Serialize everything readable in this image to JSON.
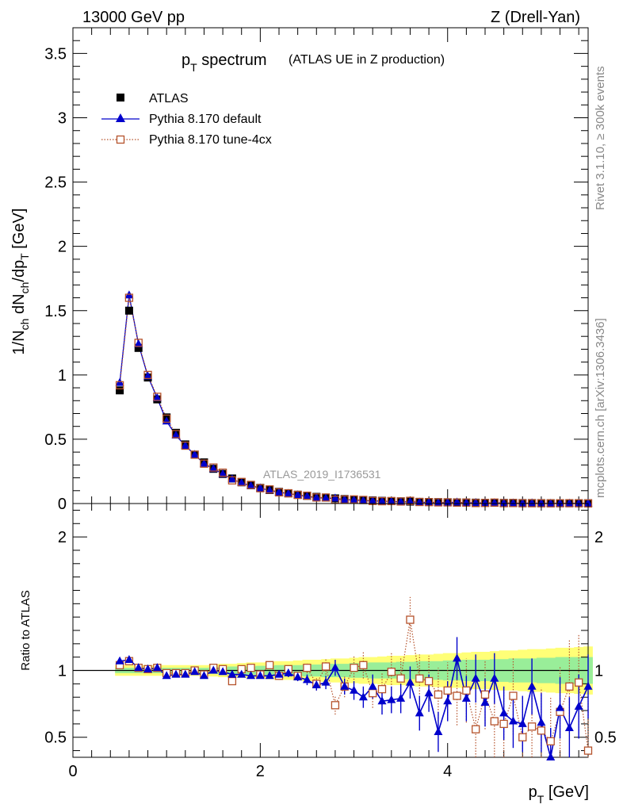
{
  "header": {
    "left_title": "13000 GeV pp",
    "right_title": "Z (Drell-Yan)"
  },
  "side_labels": {
    "rivet": "Rivet 3.1.10, ≥ 300k events",
    "mcplots": "mcplots.cern.ch [arXiv:1306.3436]"
  },
  "colors": {
    "atlas": "#000000",
    "pythia_default": "#0000cc",
    "pythia_tune": "#b5522b",
    "band_yellow": "#ffff77",
    "band_green": "#99ee99"
  },
  "chart_data": [
    {
      "type": "scatter",
      "name": "main",
      "title": "pT spectrum",
      "subtitle": "(ATLAS UE in Z production)",
      "analysis_label": "ATLAS_2019_I1736531",
      "xlabel": "pT [GeV]",
      "ylabel": "1/Nch dNch/dpT [GeV]",
      "xlim": [
        0,
        5.5
      ],
      "ylim": [
        0,
        3.7
      ],
      "yticks": [
        0,
        0.5,
        1,
        1.5,
        2,
        2.5,
        3,
        3.5
      ],
      "ytick_labels": [
        "0",
        "0.5",
        "1",
        "1.5",
        "2",
        "2.5",
        "3",
        "3.5"
      ],
      "legend": [
        "ATLAS",
        "Pythia 8.170 default",
        "Pythia 8.170 tune-4cx"
      ],
      "x": [
        0.5,
        0.6,
        0.7,
        0.8,
        0.9,
        1.0,
        1.1,
        1.2,
        1.3,
        1.4,
        1.5,
        1.6,
        1.7,
        1.8,
        1.9,
        2.0,
        2.1,
        2.2,
        2.3,
        2.4,
        2.5,
        2.6,
        2.7,
        2.8,
        2.9,
        3.0,
        3.1,
        3.2,
        3.3,
        3.4,
        3.5,
        3.6,
        3.7,
        3.8,
        3.9,
        4.0,
        4.1,
        4.2,
        4.3,
        4.4,
        4.5,
        4.6,
        4.7,
        4.8,
        4.9,
        5.0,
        5.1,
        5.2,
        5.3,
        5.4,
        5.5
      ],
      "series": [
        {
          "name": "ATLAS",
          "values": [
            0.88,
            1.5,
            1.21,
            0.98,
            0.81,
            0.67,
            0.55,
            0.46,
            0.38,
            0.32,
            0.27,
            0.23,
            0.195,
            0.165,
            0.142,
            0.122,
            0.105,
            0.091,
            0.079,
            0.069,
            0.06,
            0.052,
            0.046,
            0.04,
            0.035,
            0.031,
            0.027,
            0.024,
            0.021,
            0.019,
            0.017,
            0.015,
            0.013,
            0.012,
            0.011,
            0.01,
            0.009,
            0.008,
            0.007,
            0.006,
            0.006,
            0.005,
            0.005,
            0.004,
            0.004,
            0.0035,
            0.003,
            0.003,
            0.0028,
            0.0025,
            0.0023
          ]
        },
        {
          "name": "Pythia 8.170 default",
          "values": [
            0.94,
            1.62,
            1.24,
            0.99,
            0.82,
            0.64,
            0.53,
            0.45,
            0.38,
            0.31,
            0.27,
            0.23,
            0.19,
            0.16,
            0.137,
            0.12,
            0.102,
            0.088,
            0.077,
            0.066,
            0.056,
            0.046,
            0.042,
            0.041,
            0.031,
            0.027,
            0.022,
            0.021,
            0.018,
            0.016,
            0.013,
            0.014,
            0.009,
            0.01,
            0.006,
            0.008,
            0.01,
            0.006,
            0.006,
            0.004,
            0.005,
            0.0034,
            0.0031,
            0.0024,
            0.0035,
            0.0022,
            0.001,
            0.0022,
            0.0016,
            0.0019,
            0.002
          ]
        },
        {
          "name": "Pythia 8.170 tune-4cx",
          "values": [
            0.92,
            1.6,
            1.25,
            1.0,
            0.83,
            0.66,
            0.54,
            0.45,
            0.38,
            0.31,
            0.28,
            0.24,
            0.18,
            0.168,
            0.145,
            0.119,
            0.11,
            0.087,
            0.08,
            0.067,
            0.061,
            0.047,
            0.047,
            0.03,
            0.031,
            0.032,
            0.028,
            0.02,
            0.018,
            0.019,
            0.016,
            0.021,
            0.012,
            0.011,
            0.009,
            0.009,
            0.007,
            0.007,
            0.004,
            0.005,
            0.0075,
            0.003,
            0.004,
            0.002,
            0.0023,
            0.0018,
            0.0015,
            0.0022,
            0.0025,
            0.0023,
            0.0009
          ]
        }
      ]
    },
    {
      "type": "scatter",
      "name": "ratio",
      "xlabel": "pT [GeV]",
      "ylabel": "Ratio to ATLAS",
      "xlim": [
        0,
        5.5
      ],
      "ylim": [
        0.35,
        2.25
      ],
      "yticks": [
        0.5,
        1,
        2
      ],
      "ytick_labels": [
        "0.5",
        "1",
        "2"
      ],
      "xticks": [
        0,
        2,
        4
      ],
      "xtick_labels": [
        "0",
        "2",
        "4"
      ],
      "x": [
        0.5,
        0.6,
        0.7,
        0.8,
        0.9,
        1.0,
        1.1,
        1.2,
        1.3,
        1.4,
        1.5,
        1.6,
        1.7,
        1.8,
        1.9,
        2.0,
        2.1,
        2.2,
        2.3,
        2.4,
        2.5,
        2.6,
        2.7,
        2.8,
        2.9,
        3.0,
        3.1,
        3.2,
        3.3,
        3.4,
        3.5,
        3.6,
        3.7,
        3.8,
        3.9,
        4.0,
        4.1,
        4.2,
        4.3,
        4.4,
        4.5,
        4.6,
        4.7,
        4.8,
        4.9,
        5.0,
        5.1,
        5.2,
        5.3,
        5.4,
        5.5
      ],
      "band_yellow_halfwidth": [
        0.04,
        0.04,
        0.04,
        0.04,
        0.04,
        0.04,
        0.04,
        0.04,
        0.04,
        0.04,
        0.045,
        0.05,
        0.05,
        0.055,
        0.06,
        0.06,
        0.065,
        0.07,
        0.07,
        0.075,
        0.08,
        0.08,
        0.085,
        0.09,
        0.09,
        0.095,
        0.1,
        0.1,
        0.105,
        0.11,
        0.11,
        0.115,
        0.12,
        0.12,
        0.125,
        0.13,
        0.13,
        0.135,
        0.14,
        0.14,
        0.145,
        0.15,
        0.15,
        0.155,
        0.16,
        0.16,
        0.165,
        0.17,
        0.17,
        0.175,
        0.18
      ],
      "band_green_halfwidth": [
        0.02,
        0.02,
        0.02,
        0.02,
        0.02,
        0.02,
        0.02,
        0.02,
        0.02,
        0.02,
        0.025,
        0.025,
        0.03,
        0.03,
        0.03,
        0.035,
        0.035,
        0.04,
        0.04,
        0.04,
        0.045,
        0.045,
        0.05,
        0.05,
        0.05,
        0.055,
        0.055,
        0.06,
        0.06,
        0.06,
        0.065,
        0.065,
        0.07,
        0.07,
        0.07,
        0.075,
        0.075,
        0.08,
        0.08,
        0.08,
        0.085,
        0.085,
        0.09,
        0.09,
        0.09,
        0.095,
        0.095,
        0.1,
        0.1,
        0.1,
        0.1
      ],
      "series": [
        {
          "name": "Pythia 8.170 default",
          "values": [
            1.07,
            1.08,
            1.02,
            1.01,
            1.02,
            0.96,
            0.97,
            0.97,
            0.99,
            0.96,
            1.0,
            0.99,
            0.97,
            0.97,
            0.96,
            0.96,
            0.96,
            0.97,
            0.98,
            0.95,
            0.93,
            0.89,
            0.91,
            1.02,
            0.88,
            0.85,
            0.8,
            0.88,
            0.77,
            0.78,
            0.79,
            0.91,
            0.68,
            0.83,
            0.54,
            0.77,
            1.09,
            0.79,
            0.94,
            0.76,
            0.94,
            0.68,
            0.62,
            0.6,
            0.88,
            0.61,
            0.35,
            0.72,
            0.57,
            0.73,
            0.88
          ]
        },
        {
          "name": "Pythia 8.170 tune-4cx",
          "values": [
            1.04,
            1.07,
            1.02,
            1.01,
            1.02,
            0.98,
            0.98,
            0.98,
            1.0,
            0.97,
            1.02,
            1.01,
            0.92,
            1.01,
            1.02,
            0.97,
            1.04,
            0.96,
            1.01,
            0.96,
            1.02,
            0.9,
            1.03,
            0.74,
            0.88,
            1.02,
            1.04,
            0.83,
            0.86,
            0.99,
            0.94,
            1.38,
            0.94,
            0.92,
            0.82,
            0.85,
            0.81,
            0.85,
            0.56,
            0.82,
            0.62,
            0.6,
            0.81,
            0.5,
            0.58,
            0.55,
            0.47,
            0.69,
            0.88,
            0.91,
            0.4
          ]
        }
      ],
      "default_errors": [
        0.01,
        0.01,
        0.01,
        0.01,
        0.01,
        0.01,
        0.01,
        0.01,
        0.01,
        0.01,
        0.01,
        0.01,
        0.02,
        0.02,
        0.02,
        0.02,
        0.02,
        0.03,
        0.03,
        0.03,
        0.04,
        0.04,
        0.05,
        0.06,
        0.06,
        0.07,
        0.08,
        0.09,
        0.1,
        0.1,
        0.11,
        0.12,
        0.13,
        0.14,
        0.15,
        0.15,
        0.16,
        0.17,
        0.18,
        0.18,
        0.19,
        0.2,
        0.2,
        0.21,
        0.21,
        0.22,
        0.22,
        0.23,
        0.23,
        0.24,
        0.24
      ],
      "tune_errors": [
        0.01,
        0.01,
        0.01,
        0.01,
        0.01,
        0.01,
        0.01,
        0.01,
        0.01,
        0.01,
        0.01,
        0.01,
        0.02,
        0.02,
        0.02,
        0.02,
        0.02,
        0.03,
        0.03,
        0.03,
        0.04,
        0.05,
        0.06,
        0.07,
        0.08,
        0.09,
        0.1,
        0.11,
        0.12,
        0.14,
        0.15,
        0.17,
        0.18,
        0.19,
        0.2,
        0.21,
        0.22,
        0.24,
        0.25,
        0.26,
        0.27,
        0.28,
        0.29,
        0.3,
        0.31,
        0.32,
        0.33,
        0.34,
        0.35,
        0.36,
        0.37
      ]
    }
  ]
}
